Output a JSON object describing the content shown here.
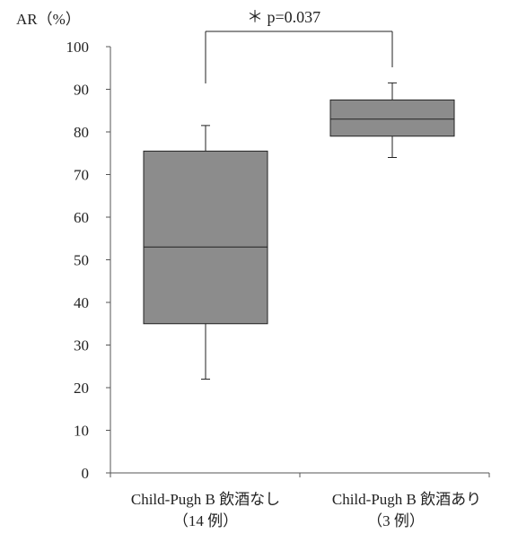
{
  "chart_data": {
    "type": "box",
    "ylabel": "AR（%）",
    "ylim": [
      0,
      100
    ],
    "yticks": [
      0,
      10,
      20,
      30,
      40,
      50,
      60,
      70,
      80,
      90,
      100
    ],
    "grid": false,
    "categories": [
      {
        "line1": "Child-Pugh B 飲酒なし",
        "line2": "（14 例）"
      },
      {
        "line1": "Child-Pugh B 飲酒あり",
        "line2": "（3 例）"
      }
    ],
    "boxes": [
      {
        "min": 22,
        "q1": 35,
        "median": 53,
        "q3": 75.5,
        "max": 81.5
      },
      {
        "min": 74,
        "q1": 79,
        "median": 83,
        "q3": 87.5,
        "max": 91.5
      }
    ],
    "box_fill": "#8c8c8c",
    "annotation": {
      "text": "＊ p=0.037"
    }
  }
}
